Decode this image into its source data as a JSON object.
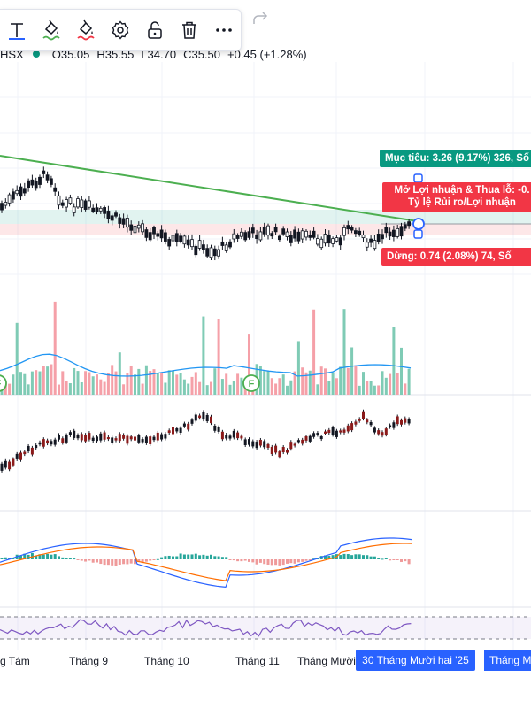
{
  "toolbar": {
    "tools": [
      {
        "name": "text-icon",
        "glyph": "T"
      },
      {
        "name": "paint-bucket-icon"
      },
      {
        "name": "pen-icon"
      },
      {
        "name": "gear-icon"
      },
      {
        "name": "lock-icon"
      },
      {
        "name": "trash-icon"
      },
      {
        "name": "more-icon",
        "glyph": "•••"
      }
    ],
    "redo_icon": "redo-icon"
  },
  "legend": {
    "exchange": "HSX",
    "open": "O35.05",
    "high": "H35.55",
    "low": "L34.70",
    "close": "C35.50",
    "change": "+0.45 (+1.28%)"
  },
  "position_tool": {
    "target_label": "Mục tiêu: 3.26 (9.17%) 326, Số",
    "pnl_label": "Mở Lợi nhuận & Thua lỗ: -0.",
    "ratio_label": "Tỷ lệ Rủi ro/Lợi nhuận",
    "stop_label": "Dừng: 0.74 (2.08%) 74, Số"
  },
  "volume_markers": [
    {
      "text": "F"
    },
    {
      "text": "F"
    }
  ],
  "time_axis": {
    "ticks": [
      "g Tám",
      "Tháng 9",
      "Tháng 10",
      "Tháng 11",
      "Tháng Mười"
    ],
    "crosshair_label": "30 Tháng Mười hai '25",
    "next_label": "Tháng M"
  },
  "colors": {
    "up": "#089981",
    "down": "#f23645",
    "trendline": "#4caf50",
    "volume_ma": "#2196f3",
    "macd": "#2962ff",
    "signal": "#ff6d00",
    "rsi": "#7e57c2",
    "accent": "#2962ff"
  }
}
